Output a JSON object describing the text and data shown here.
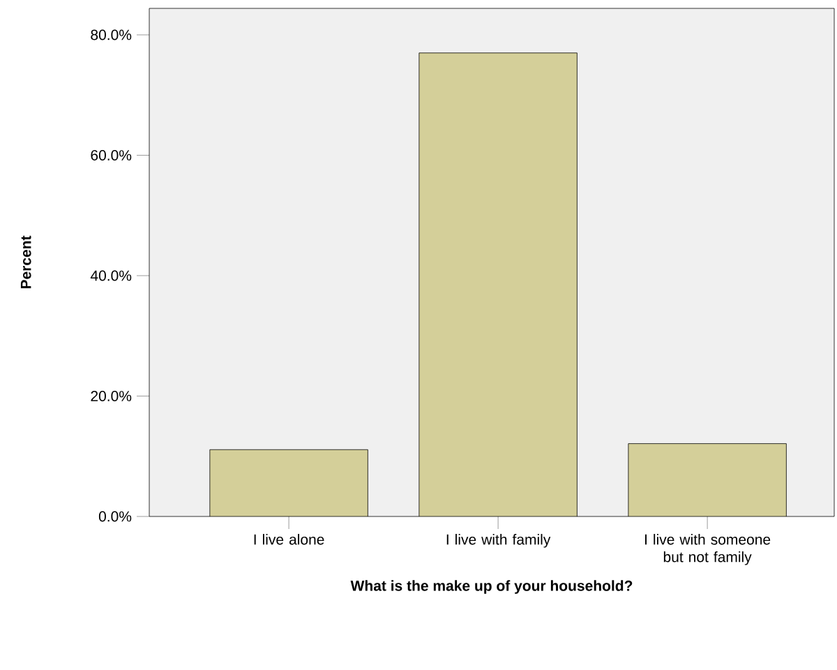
{
  "chart_data": {
    "type": "bar",
    "xlabel": "What is the make up of your household?",
    "ylabel": "Percent",
    "categories": [
      "I live alone",
      "I live with family",
      "I live with someone but not family"
    ],
    "values": [
      11.1,
      77.0,
      12.1
    ],
    "color": "#d4cf99",
    "ylim": [
      0,
      84.4
    ],
    "yticks": [
      {
        "value": 0,
        "label": "0.0%"
      },
      {
        "value": 20,
        "label": "20.0%"
      },
      {
        "value": 40,
        "label": "40.0%"
      },
      {
        "value": 60,
        "label": "60.0%"
      },
      {
        "value": 80,
        "label": "80.0%"
      }
    ]
  }
}
